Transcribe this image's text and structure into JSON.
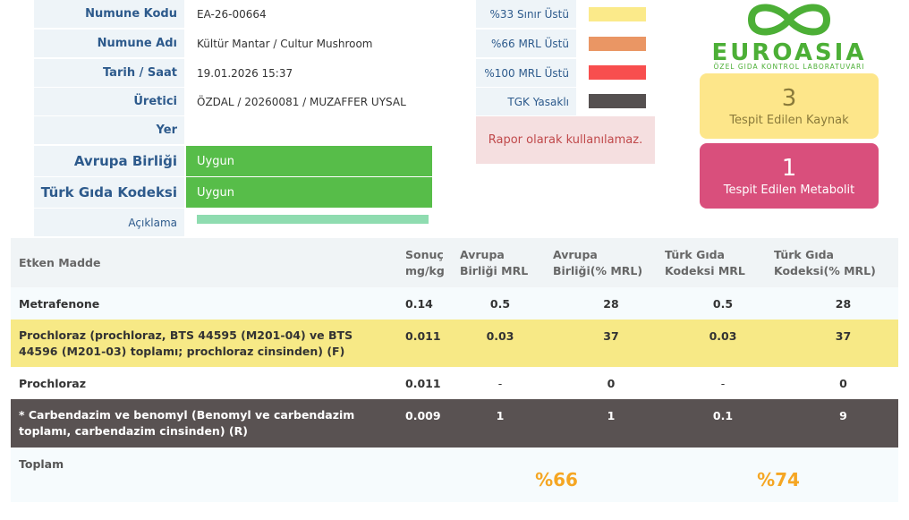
{
  "info": {
    "sample_code_label": "Numune Kodu",
    "sample_code": "EA-26-00664",
    "sample_name_label": "Numune Adı",
    "sample_name": "Kültür Mantar / Cultur Mushroom",
    "datetime_label": "Tarih / Saat",
    "datetime": "19.01.2026 15:37",
    "producer_label": "Üretici",
    "producer": "ÖZDAL / 20260081 / MUZAFFER UYSAL",
    "place_label": "Yer",
    "place": ""
  },
  "standards": {
    "eu_label": "Avrupa Birliği",
    "eu_value": "Uygun",
    "tgk_label": "Türk Gıda Kodeksi",
    "tgk_value": "Uygun",
    "desc_label": "Açıklama"
  },
  "legend": {
    "items": [
      {
        "label": "%33 Sınır Üstü",
        "color": "#fbea8a"
      },
      {
        "label": "%66 MRL Üstü",
        "color": "#ea9664"
      },
      {
        "label": "%100 MRL Üstü",
        "color": "#f84e4e"
      },
      {
        "label": "TGK Yasaklı",
        "color": "#555050"
      }
    ],
    "warning": "Rapor olarak kullanılamaz."
  },
  "logo": {
    "word": "EUROASIA",
    "subtitle": "ÖZEL GIDA KONTROL LABORATUVARI"
  },
  "stats": {
    "sources_count": "3",
    "sources_label": "Tespit Edilen Kaynak",
    "metabolite_count": "1",
    "metabolite_label": "Tespit Edilen Metabolit"
  },
  "results": {
    "headers": [
      "Etken Madde",
      "Sonuç mg/kg",
      "Avrupa Birliği MRL",
      "Avrupa Birliği(% MRL)",
      "Türk Gıda Kodeksi MRL",
      "Türk Gıda Kodeksi(% MRL)"
    ],
    "header_lines": {
      "h1a": "Sonuç",
      "h1b": "mg/kg",
      "h2a": "Avrupa",
      "h2b": "Birliği MRL",
      "h3a": "Avrupa",
      "h3b": "Birliği(% MRL)",
      "h4a": "Türk Gıda",
      "h4b": "Kodeksi MRL",
      "h5a": "Türk Gıda",
      "h5b": "Kodeksi(% MRL)"
    },
    "rows": [
      {
        "name": "Metrafenone",
        "result": "0.14",
        "eu_mrl": "0.5",
        "eu_pct": "28",
        "tgk_mrl": "0.5",
        "tgk_pct": "28"
      },
      {
        "name": "Prochloraz (prochloraz, BTS 44595 (M201-04) ve BTS 44596 (M201-03) toplamı; prochloraz cinsinden) (F)",
        "result": "0.011",
        "eu_mrl": "0.03",
        "eu_pct": "37",
        "tgk_mrl": "0.03",
        "tgk_pct": "37"
      },
      {
        "name": "Prochloraz",
        "result": "0.011",
        "eu_mrl": "-",
        "eu_pct": "0",
        "tgk_mrl": "-",
        "tgk_pct": "0"
      },
      {
        "name": "* Carbendazim ve benomyl (Benomyl ve carbendazim toplamı, carbendazim cinsinden) (R)",
        "result": "0.009",
        "eu_mrl": "1",
        "eu_pct": "1",
        "tgk_mrl": "0.1",
        "tgk_pct": "9"
      }
    ],
    "total_label": "Toplam",
    "total_eu": "%66",
    "total_tgk": "%74"
  }
}
